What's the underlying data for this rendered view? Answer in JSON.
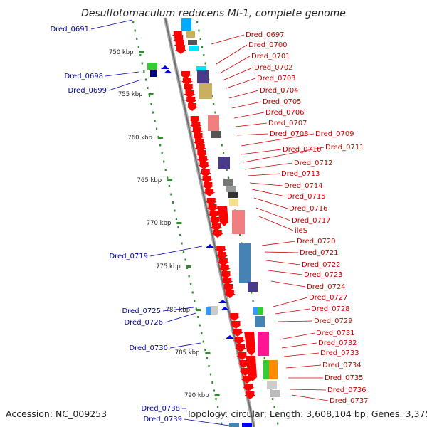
{
  "title": "Desulfotomaculum reducens MI-1, complete genome",
  "footer": {
    "accession": "Accession: NC_009253",
    "topology": "Topology: circular; Length: 3,608,104 bp; Genes: 3,375"
  },
  "ticks": [
    "750 kbp",
    "755 kbp",
    "760 kbp",
    "765 kbp",
    "770 kbp",
    "775 kbp",
    "780 kbp",
    "785 kbp",
    "790 kbp"
  ],
  "right_labels": [
    "Dred_0697",
    "Dred_0700",
    "Dred_0701",
    "Dred_0702",
    "Dred_0703",
    "Dred_0704",
    "Dred_0705",
    "Dred_0706",
    "Dred_0707",
    "Dred_0708",
    "Dred_0709",
    "Dred_0710",
    "Dred_0711",
    "Dred_0712",
    "Dred_0713",
    "Dred_0714",
    "Dred_0715",
    "Dred_0716",
    "Dred_0717",
    "ileS",
    "Dred_0720",
    "Dred_0721",
    "Dred_0722",
    "Dred_0723",
    "Dred_0724",
    "Dred_0727",
    "Dred_0728",
    "Dred_0729",
    "Dred_0731",
    "Dred_0732",
    "Dred_0733",
    "Dred_0734",
    "Dred_0735",
    "Dred_0736",
    "Dred_0737"
  ],
  "left_labels": [
    "Dred_0691",
    "Dred_0698",
    "Dred_0699",
    "Dred_0719",
    "Dred_0725",
    "Dred_0726",
    "Dred_0730",
    "Dred_0738",
    "Dred_0739"
  ],
  "colors": {
    "forward_gene": "#ff0000",
    "reverse_gene": "#0000ee",
    "right_label": "#cc0000",
    "left_label": "#0000aa",
    "backbone": "#999999",
    "gc_dots": "#2e8b2e"
  }
}
